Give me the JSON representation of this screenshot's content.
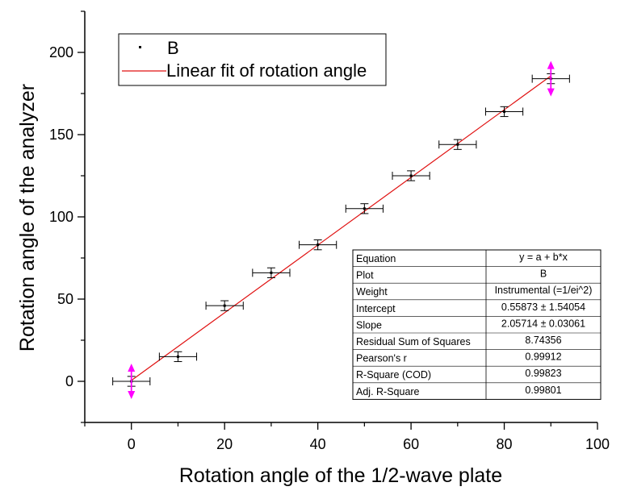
{
  "chart_data": {
    "type": "scatter",
    "xlabel": "Rotation angle of the 1/2-wave plate",
    "ylabel": "Rotation angle of the analyzer",
    "xlim": [
      -10,
      100
    ],
    "ylim": [
      -25,
      225
    ],
    "x_ticks": [
      0,
      20,
      40,
      60,
      80,
      100
    ],
    "y_ticks": [
      0,
      50,
      100,
      150,
      200
    ],
    "series": [
      {
        "name": "B",
        "x": [
          0,
          10,
          20,
          30,
          40,
          50,
          60,
          70,
          80,
          90
        ],
        "y": [
          0,
          15,
          46,
          66,
          83,
          105,
          125,
          144,
          164,
          184
        ],
        "x_err": [
          4,
          4,
          4,
          4,
          4,
          4,
          4,
          4,
          4,
          4
        ],
        "y_err": [
          3,
          3,
          3,
          3,
          3,
          3,
          3,
          3,
          3,
          3
        ],
        "color": "#000000"
      }
    ],
    "fit": {
      "name": "Linear fit of rotation angle",
      "intercept": 0.55873,
      "slope": 2.05714,
      "x_range": [
        0,
        90
      ],
      "color": "#e01010"
    },
    "highlight_arrows": {
      "x": [
        0,
        90
      ],
      "y": [
        0,
        184
      ],
      "color": "#ff00ff"
    },
    "legend": {
      "position": "top-left",
      "items": [
        "B",
        "Linear fit of rotation angle"
      ]
    },
    "stats_table": {
      "position": "bottom-right",
      "rows": [
        [
          "Equation",
          "y = a + b*x"
        ],
        [
          "Plot",
          "B"
        ],
        [
          "Weight",
          "Instrumental (=1/ei^2)"
        ],
        [
          "Intercept",
          "0.55873 ± 1.54054"
        ],
        [
          "Slope",
          "2.05714 ± 0.03061"
        ],
        [
          "Residual Sum of Squares",
          "8.74356"
        ],
        [
          "Pearson's r",
          "0.99912"
        ],
        [
          "R-Square (COD)",
          "0.99823"
        ],
        [
          "Adj. R-Square",
          "0.99801"
        ]
      ]
    }
  }
}
